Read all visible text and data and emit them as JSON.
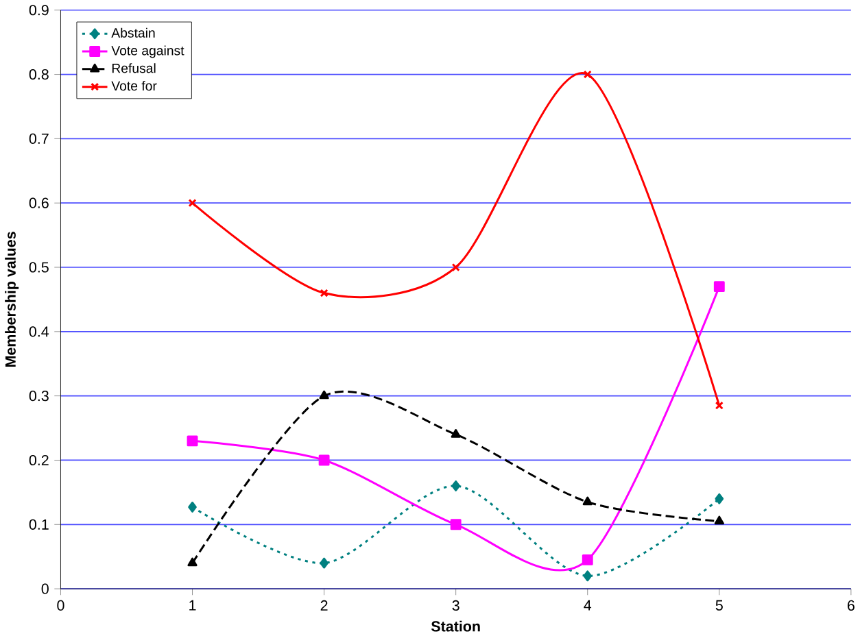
{
  "chart_data": {
    "type": "line",
    "xlabel": "Station",
    "ylabel": "Membership values",
    "x": [
      1,
      2,
      3,
      4,
      5
    ],
    "series": [
      {
        "name": "Abstain",
        "color": "#008080",
        "marker": "diamond",
        "line_style": "dotted",
        "values": [
          0.127,
          0.04,
          0.16,
          0.02,
          0.14
        ]
      },
      {
        "name": "Vote against",
        "color": "#ff00ff",
        "marker": "square",
        "line_style": "solid",
        "values": [
          0.23,
          0.2,
          0.1,
          0.045,
          0.47
        ]
      },
      {
        "name": "Refusal",
        "color": "#000000",
        "marker": "triangle",
        "line_style": "dashed",
        "values": [
          0.04,
          0.3,
          0.24,
          0.135,
          0.105
        ]
      },
      {
        "name": "Vote for",
        "color": "#ff0000",
        "marker": "cross",
        "line_style": "solid",
        "values": [
          0.6,
          0.46,
          0.5,
          0.8,
          0.285
        ]
      }
    ],
    "xlim": [
      0,
      6
    ],
    "xticks": [
      0,
      1,
      2,
      3,
      4,
      5,
      6
    ],
    "ylim": [
      0,
      0.9
    ],
    "yticks": [
      0,
      0.1,
      0.2,
      0.3,
      0.4,
      0.5,
      0.6,
      0.7,
      0.8,
      0.9
    ],
    "grid": "y",
    "legend": "top left"
  }
}
